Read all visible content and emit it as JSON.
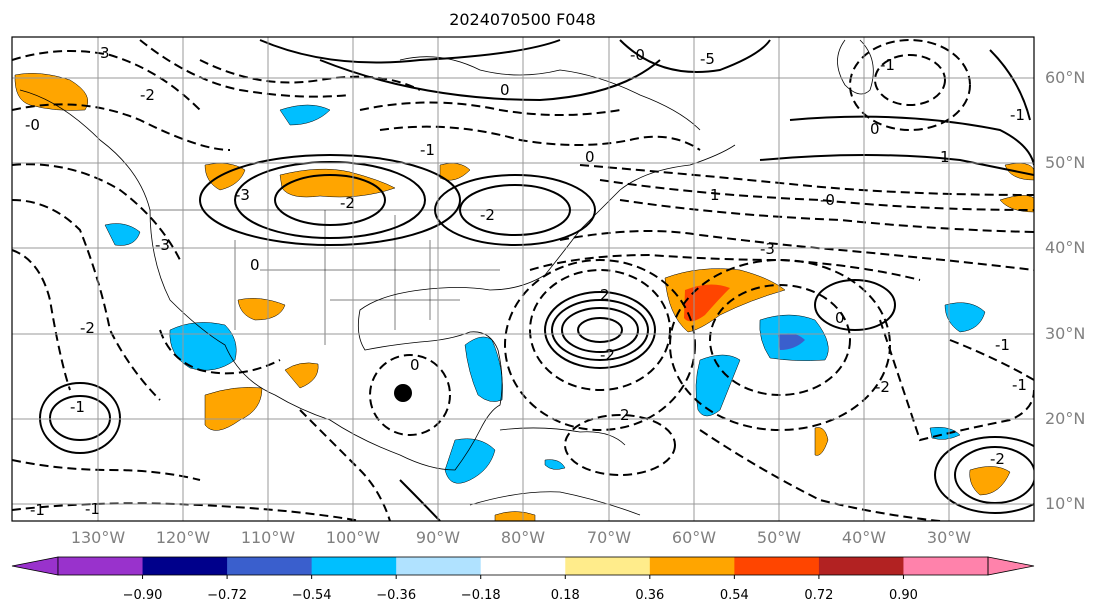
{
  "title": "2024070500 F048",
  "lat_labels": [
    "60°N",
    "50°N",
    "40°N",
    "30°N",
    "20°N",
    "10°N"
  ],
  "lon_labels": [
    "130°W",
    "120°W",
    "110°W",
    "100°W",
    "90°W",
    "80°W",
    "70°W",
    "60°W",
    "50°W",
    "40°W",
    "30°W"
  ],
  "colorbar": {
    "ticks": [
      "−0.90",
      "−0.72",
      "−0.54",
      "−0.36",
      "−0.18",
      "0.18",
      "0.36",
      "0.54",
      "0.72",
      "0.90"
    ],
    "colors": [
      "#9932cc",
      "#00008b",
      "#3a5fcd",
      "#00bfff",
      "#b0e2ff",
      "#ffffff",
      "#ffec8b",
      "#ffa500",
      "#ff4500",
      "#b22222"
    ],
    "under_color": "#9932cc",
    "over_color": "#ff82ab"
  },
  "contour_labels": [
    "-5",
    "-3",
    "-2",
    "-2",
    "-1",
    "0",
    "0",
    "0",
    "0",
    "1",
    "-1",
    "2",
    "-2",
    "2",
    "-3",
    "-3",
    "-2",
    "-2",
    "-2",
    "0",
    "-1",
    "1",
    "-1",
    "0",
    "-0",
    "-0",
    "-1",
    "-2",
    "-1",
    "-1",
    "-0",
    "-1",
    "3"
  ],
  "marker": "storm-position-dot"
}
